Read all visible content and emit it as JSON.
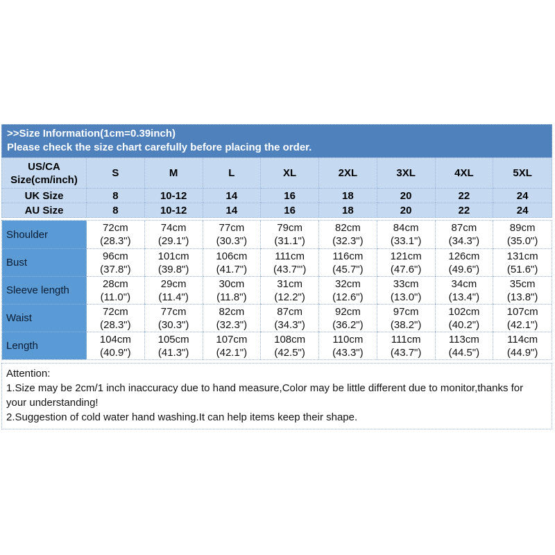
{
  "banner": {
    "line1": ">>Size Information(1cm=0.39inch)",
    "line2": "Please check the size chart carefully before placing the order."
  },
  "size_table": {
    "corner_header": "US/CA\nSize(cm/inch)",
    "size_headers": [
      "S",
      "M",
      "L",
      "XL",
      "2XL",
      "3XL",
      "4XL",
      "5XL"
    ],
    "uk_size": {
      "label": "UK Size",
      "values": [
        "8",
        "10-12",
        "14",
        "16",
        "18",
        "20",
        "22",
        "24"
      ]
    },
    "au_size": {
      "label": "AU Size",
      "values": [
        "8",
        "10-12",
        "14",
        "16",
        "18",
        "20",
        "22",
        "24"
      ]
    },
    "measurements": [
      {
        "label": "Shoulder",
        "values": [
          "72cm\n(28.3\")",
          "74cm\n(29.1\")",
          "77cm\n(30.3\")",
          "79cm\n(31.1\")",
          "82cm\n(32.3\")",
          "84cm\n(33.1\")",
          "87cm\n(34.3\")",
          "89cm\n(35.0\")"
        ]
      },
      {
        "label": "Bust",
        "values": [
          "96cm\n(37.8\")",
          "101cm\n(39.8\")",
          "106cm\n(41.7\")",
          "111cm\n(43.7\"')",
          "116cm\n(45.7\")",
          "121cm\n(47.6\")",
          "126cm\n(49.6\")",
          "131cm\n(51.6\")"
        ]
      },
      {
        "label": "Sleeve length",
        "values": [
          "28cm\n(11.0\")",
          "29cm\n(11.4\")",
          "30cm\n(11.8\")",
          "31cm\n(12.2\")",
          "32cm\n(12.6\")",
          "33cm\n(13.0\")",
          "34cm\n(13.4\")",
          "35cm\n(13.8\")"
        ]
      },
      {
        "label": "Waist",
        "values": [
          "72cm\n(28.3\")",
          "77cm\n(30.3\")",
          "82cm\n(32.3\")",
          "87cm\n(34.3\")",
          "92cm\n(36.2\")",
          "97cm\n(38.2\")",
          "102cm\n(40.2\")",
          "107cm\n(42.1\")"
        ]
      },
      {
        "label": "Length",
        "values": [
          "104cm\n(40.9\")",
          "105cm\n(41.3\")",
          "107cm\n(42.1\")",
          "108cm\n(42.5\")",
          "110cm\n(43.3\")",
          "111cm\n(43.7\")",
          "113cm\n(44.5\")",
          "114cm\n(44.9\")"
        ]
      }
    ]
  },
  "attention": {
    "title": "Attention:",
    "line1": "1.Size may be 2cm/1 inch inaccuracy due to hand measure,Color may be little different due to monitor,thanks for your understanding!",
    "line2": "2.Suggestion of cold water hand washing.It can help items keep their shape."
  },
  "colors": {
    "banner_bg": "#4f81bd",
    "banner_text": "#ffffff",
    "header_bg": "#c5d9f1",
    "label_bg": "#5b9bd5",
    "grid_line": "#95b3d7"
  }
}
